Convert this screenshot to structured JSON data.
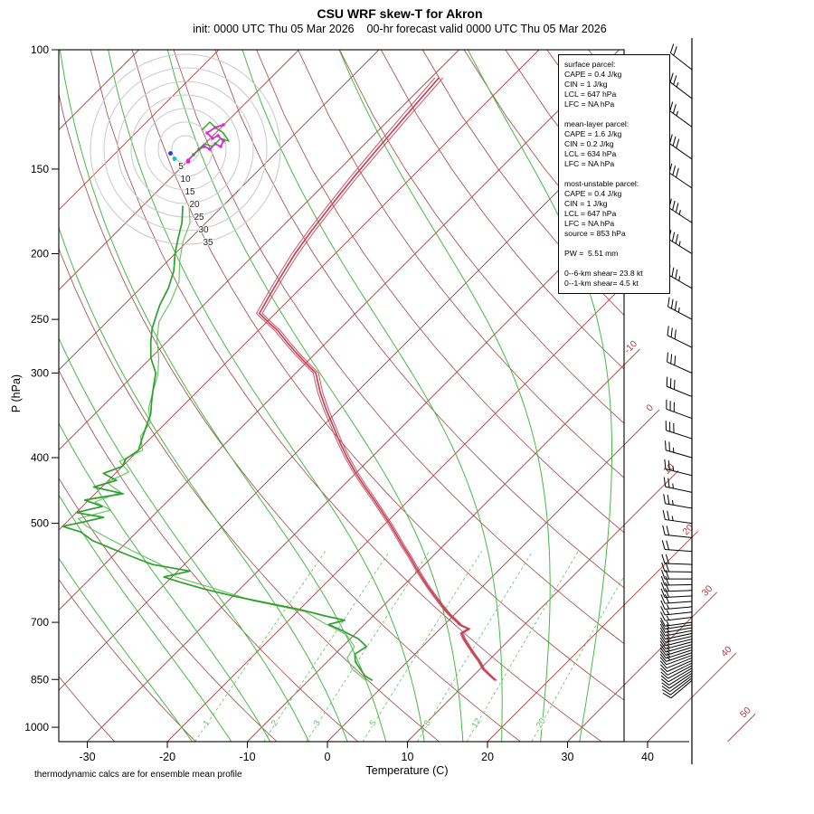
{
  "header": {
    "title": "CSU WRF skew-T for Akron",
    "subtitle": "init: 0000 UTC Thu 05 Mar 2026    00-hr forecast valid 0000 UTC Thu 05 Mar 2026"
  },
  "footer": {
    "note": "thermodynamic calcs are for ensemble mean profile"
  },
  "axes": {
    "x_label": "Temperature (C)",
    "y_label": "P (hPa)",
    "pressure_ticks": [
      100,
      150,
      200,
      250,
      300,
      400,
      500,
      700,
      850,
      1000
    ],
    "temp_ticks": [
      -30,
      -20,
      -10,
      0,
      10,
      20,
      30,
      40
    ]
  },
  "info_box": {
    "lines": [
      "surface parcel:",
      "CAPE = 0.4 J/kg",
      "CIN = 1 J/kg",
      "LCL = 647 hPa",
      "LFC = NA hPa",
      "",
      "mean-layer parcel:",
      "CAPE = 1.6 J/kg",
      "CIN = 0.2 J/kg",
      "LCL = 634 hPa",
      "LFC = NA hPa",
      "",
      "most-unstable parcel:",
      "CAPE = 0.4 J/kg",
      "CIN = 1 J/kg",
      "LCL = 647 hPa",
      "LFC = NA hPa",
      "source = 853 hPa",
      "",
      "PW =  5.51 mm",
      "",
      "0--6-km shear= 23.8 kt",
      "0--1-km shear= 4.5 kt"
    ]
  },
  "hodograph": {
    "ring_interval_kt": 5,
    "ring_labels": [
      5,
      10,
      15,
      20,
      25,
      30,
      35
    ],
    "traces": [
      {
        "color": "#e322e3",
        "width": 1.8,
        "dots": true,
        "points": [
          [
            1,
            -4
          ],
          [
            3,
            -2
          ],
          [
            5,
            0
          ],
          [
            7,
            1
          ],
          [
            9,
            0
          ],
          [
            11,
            2
          ],
          [
            13,
            1
          ],
          [
            14,
            3
          ],
          [
            12,
            5
          ],
          [
            10,
            4
          ],
          [
            8,
            6
          ],
          [
            11,
            8
          ],
          [
            14,
            9
          ]
        ]
      },
      {
        "color": "#33a02c",
        "width": 1.4,
        "dots": false,
        "points": [
          [
            2,
            -3
          ],
          [
            4,
            -1
          ],
          [
            7,
            2
          ],
          [
            10,
            1
          ],
          [
            13,
            4
          ],
          [
            16,
            3
          ],
          [
            14,
            6
          ],
          [
            11,
            8
          ],
          [
            9,
            10
          ],
          [
            6,
            7
          ]
        ]
      }
    ],
    "markers": [
      {
        "color": "#2f3fd3",
        "u": -5.5,
        "v": -1.5
      },
      {
        "color": "#00c5cd",
        "u": -4,
        "v": -3.5
      },
      {
        "color": "#e322e3",
        "u": 1,
        "v": -4.5
      }
    ]
  },
  "chart_data": {
    "type": "line",
    "subtype": "skew-t-log-p",
    "title": "CSU WRF skew-T for Akron",
    "x_axis": {
      "label": "Temperature (C)",
      "ticks": [
        -30,
        -20,
        -10,
        0,
        10,
        20,
        30,
        40
      ],
      "range": [
        -35,
        45
      ]
    },
    "y_axis": {
      "label": "P (hPa)",
      "ticks": [
        100,
        150,
        200,
        250,
        300,
        400,
        500,
        700,
        850,
        1000
      ],
      "range": [
        1050,
        100
      ],
      "scale": "log"
    },
    "surface_pressure_hpa": 853,
    "temperature_profile": [
      [
        853,
        13.4
      ],
      [
        840,
        12.2
      ],
      [
        820,
        10.4
      ],
      [
        800,
        9.0
      ],
      [
        780,
        7.4
      ],
      [
        760,
        5.8
      ],
      [
        740,
        4.2
      ],
      [
        726,
        3.2
      ],
      [
        716,
        3.6
      ],
      [
        706,
        2.0
      ],
      [
        700,
        1.4
      ],
      [
        680,
        -0.8
      ],
      [
        660,
        -2.8
      ],
      [
        640,
        -4.8
      ],
      [
        620,
        -6.8
      ],
      [
        600,
        -8.8
      ],
      [
        580,
        -10.8
      ],
      [
        560,
        -12.8
      ],
      [
        540,
        -15.0
      ],
      [
        520,
        -17.2
      ],
      [
        500,
        -19.5
      ],
      [
        480,
        -22.0
      ],
      [
        460,
        -24.6
      ],
      [
        440,
        -27.4
      ],
      [
        420,
        -30.2
      ],
      [
        400,
        -33.0
      ],
      [
        380,
        -35.8
      ],
      [
        360,
        -38.6
      ],
      [
        340,
        -41.6
      ],
      [
        320,
        -44.6
      ],
      [
        300,
        -47.5
      ],
      [
        290,
        -50.0
      ],
      [
        280,
        -52.5
      ],
      [
        270,
        -55.0
      ],
      [
        260,
        -57.5
      ],
      [
        250,
        -60.5
      ],
      [
        245,
        -62.0
      ],
      [
        230,
        -63.0
      ],
      [
        215,
        -64.0
      ],
      [
        200,
        -65.0
      ],
      [
        185,
        -65.8
      ],
      [
        170,
        -66.5
      ],
      [
        155,
        -67.2
      ],
      [
        140,
        -67.8
      ],
      [
        125,
        -68.4
      ],
      [
        110,
        -69.0
      ]
    ],
    "dewpoint_profile": [
      [
        853,
        -2.0
      ],
      [
        840,
        -3.5
      ],
      [
        820,
        -5.0
      ],
      [
        800,
        -6.5
      ],
      [
        780,
        -7.5
      ],
      [
        760,
        -7.0
      ],
      [
        740,
        -9.0
      ],
      [
        720,
        -12.0
      ],
      [
        705,
        -14.5
      ],
      [
        695,
        -13.0
      ],
      [
        685,
        -16.0
      ],
      [
        670,
        -20.0
      ],
      [
        655,
        -25.0
      ],
      [
        640,
        -30.0
      ],
      [
        625,
        -34.5
      ],
      [
        610,
        -38.5
      ],
      [
        600,
        -41.0
      ],
      [
        588,
        -38.5
      ],
      [
        575,
        -44.0
      ],
      [
        560,
        -47.5
      ],
      [
        545,
        -51.0
      ],
      [
        530,
        -54.5
      ],
      [
        515,
        -57.0
      ],
      [
        505,
        -60.0
      ],
      [
        498,
        -58.0
      ],
      [
        490,
        -56.0
      ],
      [
        482,
        -60.0
      ],
      [
        472,
        -57.5
      ],
      [
        462,
        -60.5
      ],
      [
        452,
        -56.5
      ],
      [
        442,
        -61.0
      ],
      [
        432,
        -59.0
      ],
      [
        422,
        -61.5
      ],
      [
        412,
        -60.0
      ],
      [
        402,
        -60.5
      ],
      [
        390,
        -60.0
      ],
      [
        375,
        -61.0
      ],
      [
        360,
        -62.0
      ],
      [
        345,
        -63.0
      ],
      [
        330,
        -64.5
      ],
      [
        315,
        -66.0
      ],
      [
        300,
        -67.5
      ],
      [
        285,
        -70.0
      ],
      [
        270,
        -72.0
      ],
      [
        258,
        -73.5
      ],
      [
        248,
        -74.5
      ],
      [
        238,
        -75.5
      ],
      [
        225,
        -76.5
      ],
      [
        212,
        -78.0
      ],
      [
        200,
        -80.0
      ],
      [
        190,
        -81.5
      ],
      [
        180,
        -83.0
      ],
      [
        170,
        -85.0
      ]
    ],
    "dewpoint_member": [
      [
        853,
        -2.8
      ],
      [
        820,
        -6.0
      ],
      [
        790,
        -8.0
      ],
      [
        760,
        -8.5
      ],
      [
        730,
        -11.0
      ],
      [
        700,
        -15.5
      ],
      [
        675,
        -19.0
      ],
      [
        650,
        -27.0
      ],
      [
        625,
        -33.0
      ],
      [
        600,
        -39.5
      ],
      [
        575,
        -43.0
      ],
      [
        550,
        -48.0
      ],
      [
        525,
        -53.0
      ],
      [
        505,
        -57.0
      ],
      [
        492,
        -59.0
      ],
      [
        478,
        -56.0
      ],
      [
        465,
        -59.0
      ],
      [
        450,
        -57.0
      ],
      [
        435,
        -60.0
      ],
      [
        420,
        -58.5
      ],
      [
        405,
        -61.0
      ],
      [
        390,
        -59.5
      ],
      [
        372,
        -61.5
      ],
      [
        355,
        -62.0
      ],
      [
        338,
        -64.0
      ],
      [
        320,
        -65.5
      ],
      [
        302,
        -67.0
      ],
      [
        285,
        -69.0
      ],
      [
        268,
        -71.5
      ],
      [
        252,
        -73.5
      ],
      [
        236,
        -74.5
      ],
      [
        220,
        -76.0
      ],
      [
        205,
        -78.5
      ],
      [
        192,
        -80.5
      ],
      [
        180,
        -82.0
      ],
      [
        171,
        -84.0
      ]
    ],
    "background": {
      "isotherm_step_c": 10,
      "isotherm_label_temps": [
        -10,
        0,
        10,
        20,
        30,
        40,
        50
      ],
      "dry_adiabats": {
        "theta_min_c": -40,
        "theta_max_c": 170,
        "step_c": 10
      },
      "moist_adiabats_thetaw_c": [
        -20,
        -15,
        -10,
        -5,
        0,
        5,
        10,
        15,
        20,
        25,
        30
      ],
      "mixing_ratio_g_kg": [
        1,
        2,
        3,
        5,
        8,
        12,
        20
      ]
    },
    "winds": [
      [
        853,
        230,
        8
      ],
      [
        846,
        232,
        9
      ],
      [
        839,
        234,
        9
      ],
      [
        832,
        236,
        10
      ],
      [
        825,
        238,
        10
      ],
      [
        818,
        240,
        10
      ],
      [
        811,
        242,
        11
      ],
      [
        804,
        244,
        11
      ],
      [
        797,
        246,
        12
      ],
      [
        790,
        248,
        12
      ],
      [
        783,
        250,
        12
      ],
      [
        776,
        251,
        13
      ],
      [
        769,
        252,
        13
      ],
      [
        762,
        253,
        13
      ],
      [
        755,
        254,
        14
      ],
      [
        748,
        255,
        14
      ],
      [
        741,
        256,
        14
      ],
      [
        734,
        257,
        15
      ],
      [
        727,
        258,
        15
      ],
      [
        720,
        259,
        15
      ],
      [
        713,
        260,
        15
      ],
      [
        706,
        261,
        16
      ],
      [
        700,
        262,
        16
      ],
      [
        688,
        263,
        16
      ],
      [
        676,
        264,
        17
      ],
      [
        664,
        265,
        17
      ],
      [
        652,
        266,
        18
      ],
      [
        640,
        267,
        18
      ],
      [
        628,
        268,
        18
      ],
      [
        616,
        269,
        19
      ],
      [
        604,
        270,
        19
      ],
      [
        590,
        271,
        20
      ],
      [
        575,
        272,
        20
      ],
      [
        550,
        274,
        21
      ],
      [
        525,
        276,
        22
      ],
      [
        500,
        278,
        23
      ],
      [
        475,
        280,
        24
      ],
      [
        450,
        282,
        25
      ],
      [
        425,
        284,
        26
      ],
      [
        400,
        286,
        27
      ],
      [
        375,
        288,
        28
      ],
      [
        350,
        290,
        29
      ],
      [
        325,
        292,
        30
      ],
      [
        300,
        294,
        31
      ],
      [
        275,
        296,
        32
      ],
      [
        250,
        298,
        33
      ],
      [
        225,
        300,
        34
      ],
      [
        200,
        302,
        35
      ],
      [
        180,
        303,
        33
      ],
      [
        160,
        304,
        31
      ],
      [
        145,
        305,
        29
      ],
      [
        130,
        306,
        26
      ],
      [
        118,
        307,
        23
      ],
      [
        107,
        308,
        20
      ]
    ],
    "colors": {
      "isotherm": "#ab3b3b",
      "dry_adiabat": "#a34444",
      "moist_adiabat": "#46b946",
      "mixing_ratio": "#5fbf5f",
      "temperature": "#c84257",
      "dewpoint": "#2e9e2e",
      "dewpoint_member": "#5cbf5c",
      "barb": "#000000",
      "hodo_ring": "#c9c9c9"
    }
  }
}
